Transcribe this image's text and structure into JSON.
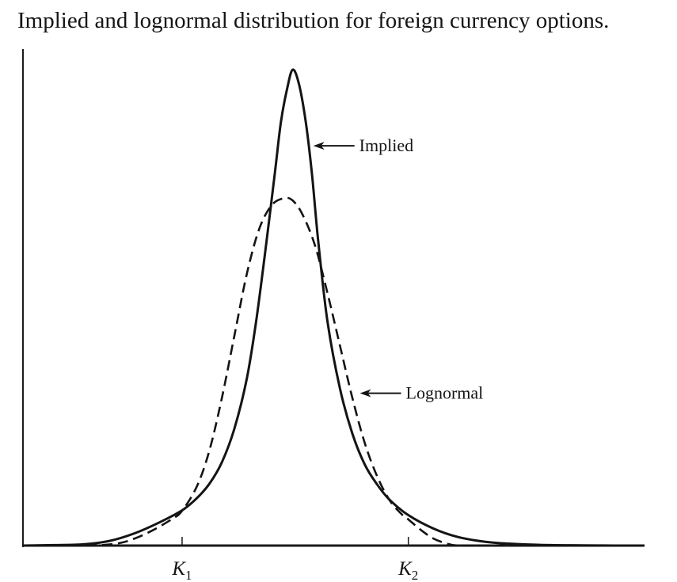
{
  "chart_data": {
    "type": "line",
    "title": "Implied and lognormal distribution for foreign currency options.",
    "xlabel": "",
    "ylabel": "",
    "xlim": [
      0,
      100
    ],
    "ylim": [
      0,
      100
    ],
    "grid": false,
    "x_ticks": [
      {
        "x": 25.6,
        "main": "K",
        "sub": "1"
      },
      {
        "x": 62.0,
        "main": "K",
        "sub": "2"
      }
    ],
    "series": [
      {
        "name": "Implied",
        "style": "solid",
        "x": [
          0,
          5,
          10,
          14,
          18,
          22,
          25.6,
          28,
          30,
          32,
          34,
          36,
          37.5,
          39,
          40.5,
          41.5,
          42.5,
          43.4,
          44.4,
          45.5,
          46.5,
          47.5,
          49,
          51,
          53,
          55,
          57,
          59,
          62,
          66,
          70,
          75,
          80,
          85,
          90,
          95,
          100
        ],
        "values": [
          0,
          0.1,
          0.3,
          1.0,
          2.6,
          4.9,
          7.4,
          10.0,
          13.0,
          17.5,
          24.5,
          35.0,
          47.0,
          62.0,
          78.0,
          89.0,
          96.0,
          100.0,
          97.0,
          89.0,
          78.0,
          64.0,
          47.0,
          33.0,
          23.5,
          17.0,
          12.8,
          9.6,
          6.4,
          3.6,
          1.8,
          0.7,
          0.3,
          0.1,
          0.05,
          0,
          0
        ]
      },
      {
        "name": "Lognormal",
        "style": "dashed",
        "x": [
          0,
          10,
          15,
          18,
          21,
          24,
          25.6,
          28,
          30,
          32,
          34,
          36,
          38,
          40,
          42,
          43.4,
          45,
          47,
          49,
          51,
          53,
          55,
          57,
          59,
          61,
          62,
          64,
          66,
          68,
          70,
          75,
          80,
          100
        ],
        "values": [
          0,
          0,
          0.4,
          1.5,
          3.3,
          5.6,
          7.3,
          12.5,
          20.0,
          31.0,
          44.0,
          57.0,
          66.5,
          71.5,
          73.0,
          72.5,
          69.5,
          63.0,
          53.0,
          42.0,
          31.0,
          21.5,
          14.5,
          9.5,
          6.5,
          5.5,
          3.3,
          1.5,
          0.5,
          0,
          0,
          0,
          0
        ]
      }
    ],
    "annotations": [
      {
        "label": "Implied",
        "series": "Implied",
        "x": 46.2,
        "y": 84.0
      },
      {
        "label": "Lognormal",
        "series": "Lognormal",
        "x": 53.7,
        "y": 32.0
      }
    ]
  }
}
